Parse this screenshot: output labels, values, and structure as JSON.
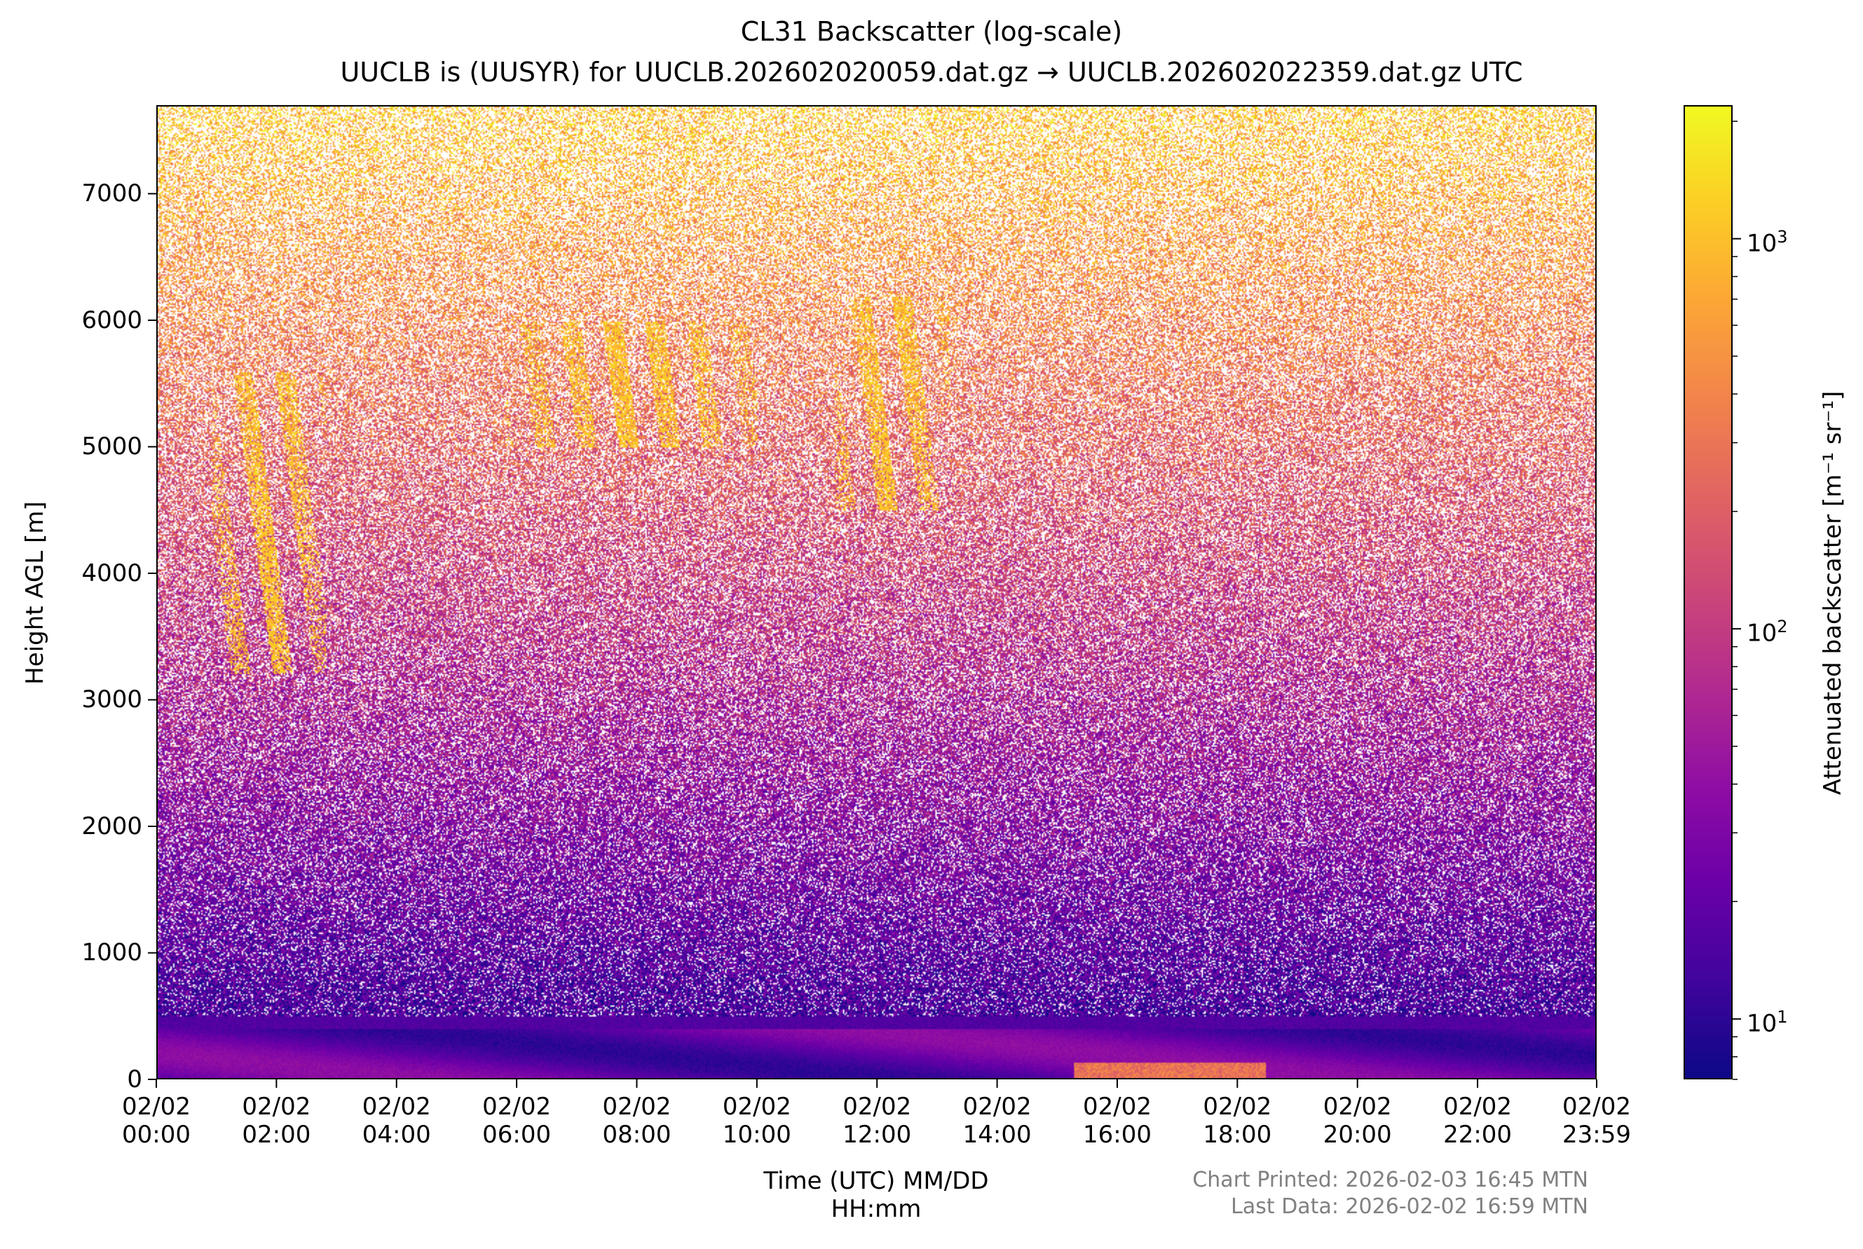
{
  "chart_data": {
    "type": "heatmap",
    "title": "CL31 Backscatter (log-scale)",
    "subtitle": "UUCLB is (UUSYR) for UUCLB.202602020059.dat.gz → UUCLB.202602022359.dat.gz UTC",
    "xlabel_line1": "Time (UTC) MM/DD",
    "xlabel_line2": "HH:mm",
    "ylabel": "Height AGL [m]",
    "x_ticks": [
      {
        "date": "02/02",
        "time": "00:00",
        "hours": 0
      },
      {
        "date": "02/02",
        "time": "02:00",
        "hours": 2
      },
      {
        "date": "02/02",
        "time": "04:00",
        "hours": 4
      },
      {
        "date": "02/02",
        "time": "06:00",
        "hours": 6
      },
      {
        "date": "02/02",
        "time": "08:00",
        "hours": 8
      },
      {
        "date": "02/02",
        "time": "10:00",
        "hours": 10
      },
      {
        "date": "02/02",
        "time": "12:00",
        "hours": 12
      },
      {
        "date": "02/02",
        "time": "14:00",
        "hours": 14
      },
      {
        "date": "02/02",
        "time": "16:00",
        "hours": 16
      },
      {
        "date": "02/02",
        "time": "18:00",
        "hours": 18
      },
      {
        "date": "02/02",
        "time": "20:00",
        "hours": 20
      },
      {
        "date": "02/02",
        "time": "22:00",
        "hours": 22
      },
      {
        "date": "02/02",
        "time": "23:59",
        "hours": 23.983
      }
    ],
    "x_range_hours": [
      0,
      23.983
    ],
    "y_ticks": [
      {
        "label": "0",
        "value": 0
      },
      {
        "label": "1000",
        "value": 1000
      },
      {
        "label": "2000",
        "value": 2000
      },
      {
        "label": "3000",
        "value": 3000
      },
      {
        "label": "4000",
        "value": 4000
      },
      {
        "label": "5000",
        "value": 5000
      },
      {
        "label": "6000",
        "value": 6000
      },
      {
        "label": "7000",
        "value": 7000
      }
    ],
    "y_range": [
      0,
      7700
    ],
    "colorbar": {
      "label": "Attenuated backscatter [m⁻¹ sr⁻¹]",
      "scale": "log",
      "range": [
        7,
        2200
      ],
      "colormap": "plasma",
      "ticks": [
        {
          "base": "10",
          "exp": "1",
          "value": 10
        },
        {
          "base": "10",
          "exp": "2",
          "value": 100
        },
        {
          "base": "10",
          "exp": "3",
          "value": 1000
        }
      ]
    },
    "features": [
      {
        "type": "cloud-streak",
        "x_start_hours": 0.9,
        "x_end_hours": 2.8,
        "y_top": 5600,
        "y_bottom": 3200
      },
      {
        "type": "cloud-streak",
        "x_start_hours": 5.8,
        "x_end_hours": 10.0,
        "y_top": 6000,
        "y_bottom": 5000
      },
      {
        "type": "cloud-streak",
        "x_start_hours": 11.3,
        "x_end_hours": 13.2,
        "y_top": 6200,
        "y_bottom": 4500
      },
      {
        "type": "boundary-layer",
        "x_start_hours": 0,
        "x_end_hours": 23.983,
        "y_top": 500,
        "y_bottom": 0
      }
    ]
  },
  "footer": {
    "printed": "Chart Printed: 2026-02-03 16:45 MTN",
    "last_data": "Last Data: 2026-02-02 16:59 MTN"
  },
  "colors": {
    "axis": "#000000",
    "note": "#808080",
    "background": "#ffffff"
  }
}
